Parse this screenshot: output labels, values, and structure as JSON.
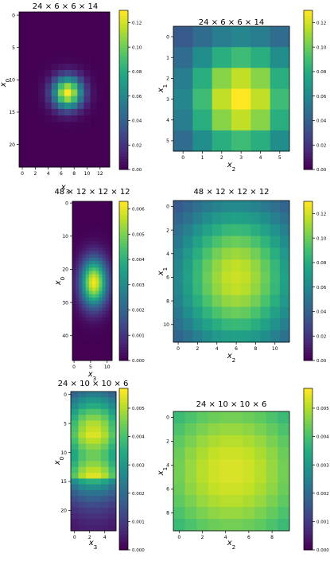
{
  "chart_data": [
    {
      "type": "heatmap",
      "title": "24 × 6 × 6 × 14",
      "xlabel": "x3",
      "ylabel": "x0",
      "rows": 24,
      "cols": 14,
      "x_ticks": [
        0,
        2,
        4,
        6,
        8,
        10,
        12
      ],
      "y_ticks": [
        0,
        5,
        10,
        15,
        20
      ],
      "colorbar_ticks": [
        "0.00",
        "0.02",
        "0.04",
        "0.06",
        "0.08",
        "0.10",
        "0.12"
      ],
      "vmin": 0.0,
      "vmax": 0.13,
      "peak_value": 0.13,
      "peak_row": 12,
      "peak_col": 7,
      "spread_row": 1.7,
      "spread_col": 1.6,
      "floor_value": 0.0,
      "colormap": "viridis"
    },
    {
      "type": "heatmap",
      "title": "24 × 6 × 6 × 14",
      "xlabel": "x2",
      "ylabel": "x1",
      "rows": 6,
      "cols": 6,
      "x_ticks": [
        0,
        1,
        2,
        3,
        4,
        5
      ],
      "y_ticks": [
        0,
        1,
        2,
        3,
        4,
        5
      ],
      "colorbar_ticks": [
        "0.00",
        "0.02",
        "0.04",
        "0.06",
        "0.08",
        "0.10",
        "0.12"
      ],
      "vmin": 0.0,
      "vmax": 0.13,
      "peak_value": 0.13,
      "peak_row": 3,
      "peak_col": 3,
      "spread_row": 2.0,
      "spread_col": 2.0,
      "floor_value": 0.025,
      "colormap": "viridis"
    },
    {
      "type": "heatmap",
      "title": "48 × 12 × 12 × 12",
      "xlabel": "x3",
      "ylabel": "x0",
      "rows": 48,
      "cols": 12,
      "x_ticks": [
        0,
        5,
        10
      ],
      "y_ticks": [
        0,
        10,
        20,
        30,
        40
      ],
      "colorbar_ticks": [
        "0.000",
        "0.001",
        "0.002",
        "0.003",
        "0.004",
        "0.005",
        "0.006"
      ],
      "vmin": 0.0,
      "vmax": 0.0063,
      "peak_value": 0.0062,
      "peak_row": 24,
      "peak_col": 6,
      "spread_row": 5.0,
      "spread_col": 2.8,
      "floor_value": 0.0,
      "colormap": "viridis"
    },
    {
      "type": "heatmap",
      "title": "48 × 12 × 12 × 12",
      "xlabel": "x2",
      "ylabel": "x1",
      "rows": 12,
      "cols": 12,
      "x_ticks": [
        0,
        2,
        4,
        6,
        8,
        10
      ],
      "y_ticks": [
        0,
        2,
        4,
        6,
        8,
        10
      ],
      "colorbar_ticks": [
        "0.00",
        "0.02",
        "0.04",
        "0.06",
        "0.08",
        "0.10",
        "0.12"
      ],
      "vmin": 0.0,
      "vmax": 0.13,
      "peak_value": 0.12,
      "peak_row": 6,
      "peak_col": 6,
      "spread_row": 4.5,
      "spread_col": 4.5,
      "floor_value": 0.02,
      "colormap": "viridis"
    },
    {
      "type": "heatmap",
      "title": "24 × 10 × 10 × 6",
      "xlabel": "x3",
      "ylabel": "x0",
      "rows": 24,
      "cols": 6,
      "x_ticks": [
        0,
        2,
        4
      ],
      "y_ticks": [
        0,
        5,
        10,
        15,
        20
      ],
      "colorbar_ticks": [
        "0.000",
        "0.001",
        "0.002",
        "0.003",
        "0.004",
        "0.005"
      ],
      "vmin": 0.0,
      "vmax": 0.0057,
      "row_profile": [
        0.0024,
        0.003,
        0.0035,
        0.0041,
        0.0046,
        0.005,
        0.0052,
        0.0054,
        0.0051,
        0.0047,
        0.0044,
        0.0044,
        0.0047,
        0.0051,
        0.0054,
        0.0036,
        0.0028,
        0.0022,
        0.0017,
        0.0013,
        0.001,
        0.0008,
        0.0006,
        0.0005
      ],
      "col_profile": [
        0.78,
        0.93,
        1.0,
        1.0,
        0.93,
        0.78
      ],
      "colormap": "viridis"
    },
    {
      "type": "heatmap",
      "title": "24 × 10 × 10 × 6",
      "xlabel": "x2",
      "ylabel": "x1",
      "rows": 10,
      "cols": 10,
      "x_ticks": [
        0,
        2,
        4,
        6,
        8
      ],
      "y_ticks": [
        0,
        2,
        4,
        6,
        8
      ],
      "colorbar_ticks": [
        "0.000",
        "0.001",
        "0.002",
        "0.003",
        "0.004",
        "0.005"
      ],
      "vmin": 0.0,
      "vmax": 0.0057,
      "peak_value": 0.0054,
      "peak_row": 4.5,
      "peak_col": 4.5,
      "spread_row": 5.5,
      "spread_col": 5.5,
      "floor_value": 0.0022,
      "colormap": "viridis"
    }
  ]
}
